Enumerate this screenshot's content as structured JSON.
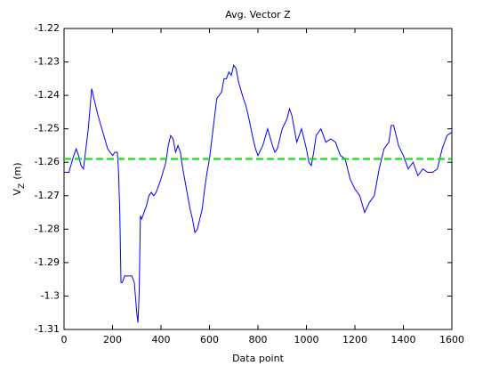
{
  "chart_data": {
    "type": "line",
    "title": "Avg. Vector Z",
    "xlabel": "Data point",
    "ylabel": "V",
    "ylabel_sub": "Z",
    "ylabel_unit": "(m)",
    "xlim": [
      0,
      1600
    ],
    "xticks": [
      0,
      200,
      400,
      600,
      800,
      1000,
      1200,
      1400,
      1600
    ],
    "ylim": [
      -1.31,
      -1.22
    ],
    "yticks": [
      -1.31,
      -1.3,
      -1.29,
      -1.28,
      -1.27,
      -1.26,
      -1.25,
      -1.24,
      -1.23,
      -1.22
    ],
    "grid": false,
    "series": [
      {
        "color": "#0000ff",
        "style": "solid",
        "x": [
          0,
          20,
          40,
          50,
          60,
          70,
          80,
          90,
          100,
          114,
          130,
          140,
          160,
          180,
          200,
          210,
          220,
          225,
          230,
          235,
          240,
          250,
          270,
          280,
          290,
          300,
          305,
          310,
          315,
          320,
          330,
          340,
          350,
          360,
          370,
          380,
          400,
          420,
          430,
          440,
          450,
          460,
          470,
          480,
          490,
          500,
          510,
          520,
          530,
          540,
          550,
          560,
          570,
          580,
          590,
          600,
          610,
          620,
          630,
          640,
          650,
          660,
          670,
          680,
          690,
          700,
          710,
          720,
          740,
          750,
          760,
          780,
          790,
          800,
          820,
          840,
          860,
          870,
          880,
          900,
          920,
          930,
          940,
          950,
          960,
          970,
          980,
          1000,
          1010,
          1020,
          1030,
          1040,
          1060,
          1080,
          1100,
          1120,
          1140,
          1160,
          1180,
          1200,
          1220,
          1240,
          1260,
          1280,
          1300,
          1320,
          1340,
          1350,
          1360,
          1380,
          1400,
          1420,
          1440,
          1460,
          1480,
          1500,
          1520,
          1540,
          1560,
          1580,
          1600
        ],
        "values": [
          -1.263,
          -1.263,
          -1.258,
          -1.256,
          -1.258,
          -1.261,
          -1.262,
          -1.256,
          -1.25,
          -1.238,
          -1.243,
          -1.246,
          -1.251,
          -1.256,
          -1.258,
          -1.257,
          -1.257,
          -1.263,
          -1.275,
          -1.296,
          -1.296,
          -1.294,
          -1.294,
          -1.294,
          -1.296,
          -1.305,
          -1.308,
          -1.299,
          -1.276,
          -1.277,
          -1.275,
          -1.273,
          -1.27,
          -1.269,
          -1.27,
          -1.269,
          -1.265,
          -1.26,
          -1.255,
          -1.252,
          -1.253,
          -1.257,
          -1.255,
          -1.257,
          -1.262,
          -1.266,
          -1.27,
          -1.274,
          -1.277,
          -1.281,
          -1.28,
          -1.277,
          -1.274,
          -1.268,
          -1.263,
          -1.259,
          -1.253,
          -1.247,
          -1.241,
          -1.24,
          -1.239,
          -1.235,
          -1.235,
          -1.233,
          -1.234,
          -1.231,
          -1.232,
          -1.236,
          -1.241,
          -1.243,
          -1.246,
          -1.253,
          -1.256,
          -1.258,
          -1.255,
          -1.25,
          -1.255,
          -1.257,
          -1.256,
          -1.25,
          -1.247,
          -1.244,
          -1.246,
          -1.25,
          -1.254,
          -1.252,
          -1.25,
          -1.256,
          -1.26,
          -1.261,
          -1.257,
          -1.252,
          -1.25,
          -1.254,
          -1.253,
          -1.254,
          -1.258,
          -1.259,
          -1.265,
          -1.268,
          -1.27,
          -1.275,
          -1.272,
          -1.27,
          -1.262,
          -1.256,
          -1.254,
          -1.249,
          -1.249,
          -1.255,
          -1.258,
          -1.262,
          -1.26,
          -1.264,
          -1.262,
          -1.263,
          -1.263,
          -1.262,
          -1.256,
          -1.252,
          -1.251
        ]
      },
      {
        "color": "#00dd00",
        "style": "dashed",
        "x": [
          0,
          1600
        ],
        "values": [
          -1.259,
          -1.259
        ]
      }
    ]
  }
}
